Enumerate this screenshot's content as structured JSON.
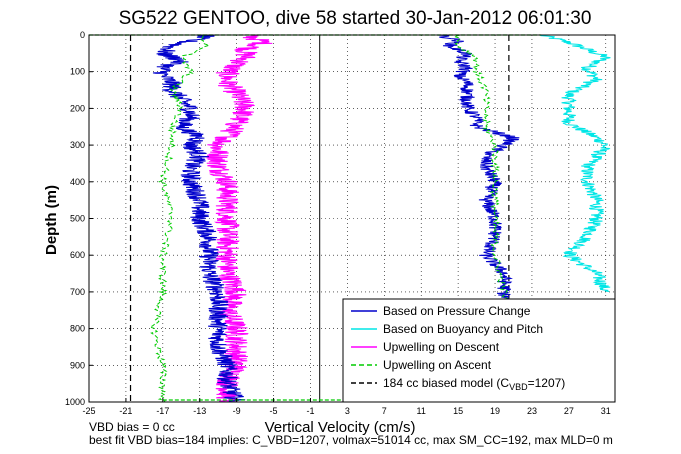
{
  "chart_data": {
    "type": "line",
    "title": "SG522 GENTOO, dive 58 started 30-Jan-2012 06:01:30",
    "xlabel": "Vertical Velocity (cm/s)",
    "ylabel": "Depth (m)",
    "xlim": [
      -25,
      32
    ],
    "ylim": [
      1000,
      0
    ],
    "x_ticks": [
      -25,
      -21,
      -17,
      -13,
      -9,
      -5,
      -1,
      3,
      7,
      11,
      15,
      19,
      23,
      27,
      31
    ],
    "y_ticks": [
      0,
      100,
      200,
      300,
      400,
      500,
      600,
      700,
      800,
      900,
      1000
    ],
    "grid": true,
    "legend_position": "bottom-right",
    "series": [
      {
        "name": "Based on Pressure Change",
        "color": "#0000cc",
        "style": "solid",
        "depth": [
          0,
          15,
          30,
          50,
          70,
          90,
          110,
          130,
          150,
          175,
          200,
          225,
          250,
          280,
          300,
          330,
          360,
          400,
          450,
          500,
          550,
          600,
          650,
          700,
          750,
          800,
          850,
          900,
          950,
          1000
        ],
        "x_descent": [
          -12,
          -14,
          -16,
          -17,
          -15,
          -17,
          -17,
          -16,
          -16,
          -15,
          -14,
          -14,
          -15,
          -13,
          -14,
          -13,
          -14,
          -14,
          -13,
          -13,
          -12,
          -12,
          -12,
          -11,
          -11,
          -11,
          -11,
          -10,
          -10,
          -9
        ],
        "x_ascent": [
          13,
          15,
          14,
          16,
          15,
          16,
          15,
          16,
          16,
          16,
          16,
          17,
          17,
          21,
          20,
          18,
          18,
          19,
          18,
          19,
          19,
          18,
          20,
          20,
          20,
          20,
          20,
          20,
          20,
          20
        ]
      },
      {
        "name": "Based on Buoyancy and Pitch",
        "color": "#00e6e6",
        "style": "solid",
        "depth": [
          0,
          20,
          40,
          60,
          90,
          120,
          160,
          200,
          240,
          280,
          300,
          330,
          360,
          400,
          450,
          500,
          550,
          600,
          650,
          700
        ],
        "x": [
          24,
          27,
          29,
          31,
          29,
          30,
          27,
          27,
          27,
          30,
          31,
          30,
          29,
          29,
          30,
          30,
          29,
          27,
          30,
          31
        ]
      },
      {
        "name": "Upwelling on Descent",
        "color": "#ff00ff",
        "style": "solid",
        "depth": [
          0,
          20,
          40,
          60,
          80,
          100,
          130,
          160,
          200,
          240,
          280,
          300,
          330,
          360,
          400,
          450,
          500,
          550,
          600,
          650,
          700,
          750,
          800,
          850,
          900,
          950,
          1000
        ],
        "x": [
          -8,
          -6,
          -8,
          -8,
          -9,
          -10,
          -10,
          -9,
          -8,
          -9,
          -10,
          -11,
          -11,
          -11,
          -10,
          -10,
          -10,
          -10,
          -10,
          -10,
          -9,
          -10,
          -9,
          -9,
          -9,
          -10,
          -10
        ]
      },
      {
        "name": "Upwelling on Ascent",
        "color": "#00cc00",
        "style": "dashed",
        "depth": [
          0,
          30,
          60,
          100,
          150,
          200,
          250,
          300,
          400,
          500,
          600,
          700,
          800,
          900,
          950,
          1000
        ],
        "x": [
          15,
          15,
          17,
          17,
          18,
          18,
          18,
          19,
          19,
          19,
          19,
          20,
          20,
          20,
          19,
          20
        ]
      },
      {
        "name": "184 cc biased model (C",
        "name_sub": "VBD",
        "name_tail": "=1207)",
        "color": "#000000",
        "style": "dashed",
        "x_descent": -20.5,
        "x_ascent": 20.5
      }
    ],
    "reference_line_x": 0
  },
  "footer": {
    "line1": "VBD bias = 0 cc",
    "line2": "best fit VBD bias=184 implies: C_VBD=1207, volmax=51014 cc, max SM_CC=192, max MLD=0 m"
  }
}
